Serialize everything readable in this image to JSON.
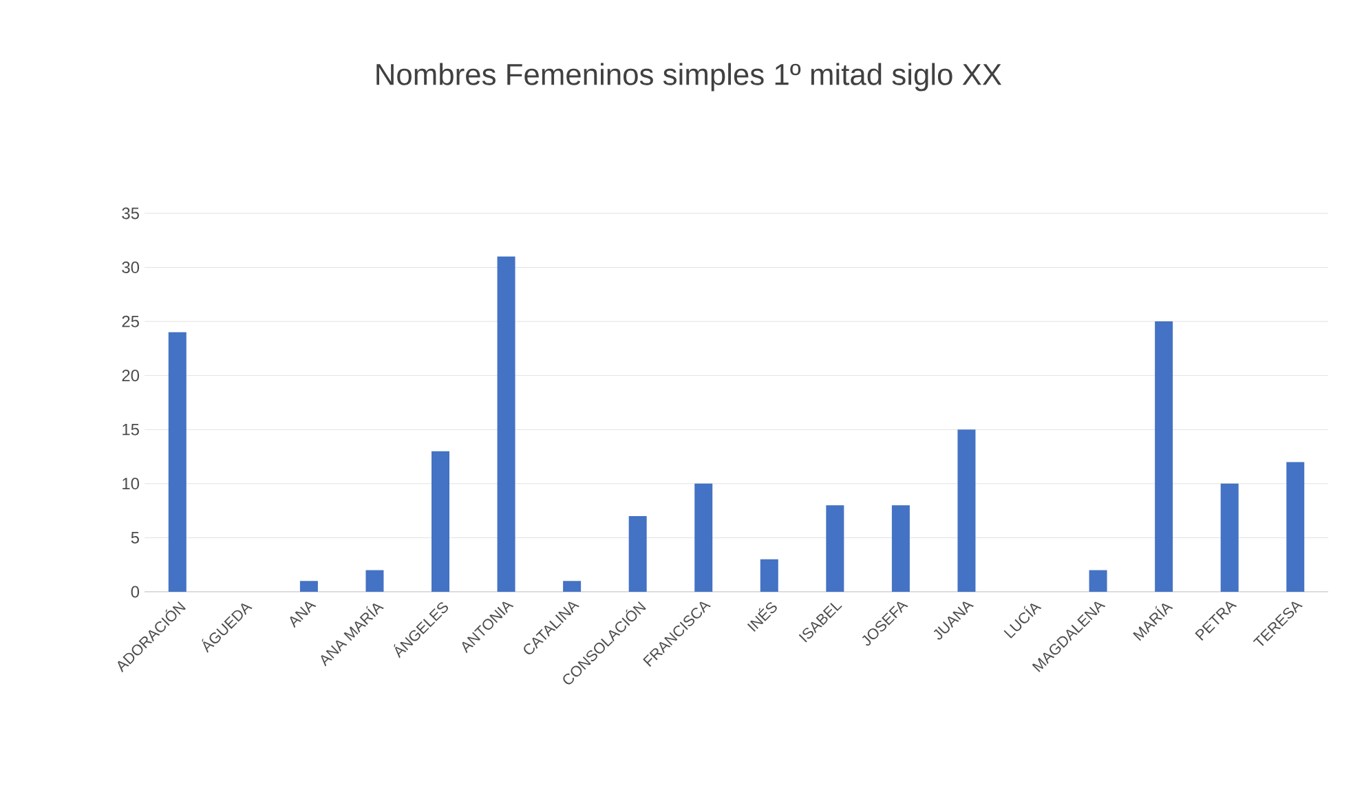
{
  "chart_data": {
    "type": "bar",
    "title": "Nombres Femeninos simples 1º mitad siglo XX",
    "categories": [
      "ADORACIÓN",
      "ÁGUEDA",
      "ANA",
      "ANA MARÍA",
      "ÁNGELES",
      "ANTONIA",
      "CATALINA",
      "CONSOLACIÓN",
      "FRANCISCA",
      "INÉS",
      "ISABEL",
      "JOSEFA",
      "JUANA",
      "LUCÍA",
      "MAGDALENA",
      "MARÍA",
      "PETRA",
      "TERESA"
    ],
    "values": [
      24,
      0,
      1,
      2,
      13,
      31,
      1,
      7,
      10,
      3,
      8,
      8,
      15,
      0,
      2,
      25,
      10,
      12
    ],
    "color": "#4472c4",
    "ylim": [
      0,
      35
    ],
    "yticks": [
      0,
      5,
      10,
      15,
      20,
      25,
      30,
      35
    ],
    "grid": "y"
  }
}
